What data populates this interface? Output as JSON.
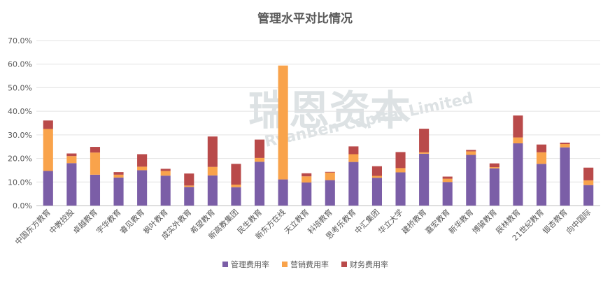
{
  "watermark": {
    "cn": "瑞恩资本",
    "en": "RyanBen Capital Limited"
  },
  "chart_data": {
    "type": "bar",
    "stacked": true,
    "title": "管理水平对比情况",
    "xlabel": "",
    "ylabel": "",
    "ylim": [
      0,
      70
    ],
    "yticks": [
      "0.0%",
      "10.0%",
      "20.0%",
      "30.0%",
      "40.0%",
      "50.0%",
      "60.0%",
      "70.0%"
    ],
    "grid": true,
    "legend_position": "bottom",
    "categories": [
      "中国东方教育",
      "中教控股",
      "卓越教育",
      "宇华教育",
      "睿见教育",
      "枫叶教育",
      "成实外教育",
      "希望教育",
      "新高教集团",
      "民生教育",
      "新东方在线",
      "天立教育",
      "科培教育",
      "思考乐教育",
      "中汇集团",
      "华立大学",
      "建桥教育",
      "嘉宏教育",
      "新华教育",
      "博骏教育",
      "辰林教育",
      "21世纪教育",
      "银杏教育",
      "向中国际"
    ],
    "series": [
      {
        "name": "管理费用率",
        "color": "#7b5ea7",
        "values": [
          14.7,
          18.0,
          13.1,
          11.9,
          15.0,
          12.7,
          7.9,
          12.8,
          7.8,
          18.6,
          11.1,
          9.8,
          10.8,
          18.5,
          11.8,
          14.1,
          22.0,
          10.0,
          21.5,
          15.8,
          26.4,
          17.7,
          24.7,
          8.7
        ]
      },
      {
        "name": "营销费用率",
        "color": "#f9a34b",
        "values": [
          17.8,
          3.0,
          9.4,
          1.2,
          1.5,
          2.0,
          0.6,
          3.6,
          1.1,
          1.6,
          48.3,
          2.6,
          3.2,
          3.3,
          0.8,
          1.8,
          0.6,
          1.4,
          1.5,
          0.5,
          2.5,
          4.9,
          1.4,
          2.0
        ]
      },
      {
        "name": "财务费用率",
        "color": "#b94a4a",
        "values": [
          3.6,
          1.1,
          2.4,
          1.1,
          5.3,
          0.9,
          5.1,
          12.9,
          8.8,
          7.8,
          0.0,
          1.3,
          0.3,
          3.3,
          4.1,
          6.8,
          10.0,
          0.9,
          0.6,
          1.6,
          9.3,
          3.3,
          0.6,
          5.4
        ]
      }
    ]
  }
}
